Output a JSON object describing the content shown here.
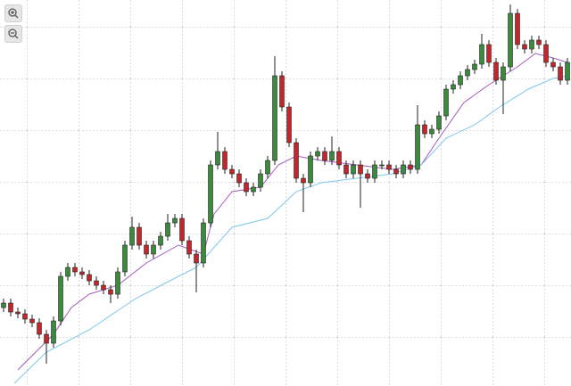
{
  "chart_data": {
    "type": "candlestick",
    "xlim": [
      -0.5,
      79.5
    ],
    "ylim": [
      0,
      433
    ],
    "up_color": "#3b8a3e",
    "down_color": "#c0282d",
    "wick_color": "#222222",
    "open": [
      88,
      93,
      83,
      81,
      75,
      71,
      58,
      48,
      73,
      123,
      133,
      128,
      125,
      118,
      113,
      108,
      103,
      128,
      158,
      178,
      158,
      148,
      158,
      168,
      183,
      188,
      163,
      148,
      138,
      183,
      248,
      263,
      243,
      238,
      228,
      218,
      223,
      238,
      253,
      348,
      313,
      273,
      233,
      228,
      258,
      263,
      253,
      263,
      248,
      238,
      248,
      238,
      233,
      248,
      248,
      243,
      238,
      248,
      243,
      293,
      283,
      288,
      303,
      333,
      338,
      348,
      355,
      361,
      383,
      363,
      343,
      358,
      418,
      383,
      378,
      388,
      383,
      363,
      358,
      343
    ],
    "high": [
      98,
      98,
      88,
      86,
      80,
      76,
      63,
      78,
      128,
      138,
      138,
      133,
      130,
      123,
      118,
      113,
      133,
      163,
      190,
      183,
      163,
      163,
      173,
      193,
      193,
      193,
      168,
      153,
      188,
      253,
      285,
      268,
      248,
      243,
      233,
      228,
      243,
      258,
      370,
      353,
      318,
      278,
      238,
      263,
      268,
      268,
      280,
      268,
      253,
      253,
      253,
      243,
      253,
      253,
      253,
      248,
      253,
      253,
      315,
      298,
      293,
      308,
      338,
      343,
      353,
      360,
      366,
      395,
      388,
      368,
      363,
      428,
      423,
      388,
      393,
      393,
      388,
      368,
      363,
      368
    ],
    "low": [
      83,
      78,
      76,
      70,
      66,
      53,
      25,
      43,
      68,
      118,
      123,
      120,
      113,
      108,
      103,
      93,
      98,
      123,
      153,
      153,
      143,
      143,
      153,
      163,
      178,
      158,
      143,
      105,
      133,
      178,
      243,
      238,
      233,
      223,
      213,
      213,
      218,
      233,
      248,
      308,
      268,
      228,
      195,
      223,
      253,
      248,
      248,
      243,
      233,
      233,
      200,
      228,
      228,
      243,
      238,
      233,
      233,
      238,
      238,
      278,
      278,
      283,
      298,
      328,
      333,
      343,
      350,
      356,
      358,
      338,
      305,
      353,
      378,
      373,
      373,
      378,
      358,
      353,
      338,
      338
    ],
    "close": [
      93,
      83,
      81,
      75,
      71,
      58,
      48,
      73,
      123,
      133,
      128,
      125,
      118,
      113,
      108,
      103,
      128,
      158,
      178,
      158,
      148,
      158,
      168,
      183,
      188,
      163,
      148,
      138,
      183,
      248,
      263,
      243,
      238,
      228,
      218,
      223,
      238,
      253,
      348,
      313,
      273,
      233,
      228,
      258,
      263,
      253,
      263,
      248,
      238,
      248,
      238,
      233,
      248,
      248,
      243,
      238,
      248,
      243,
      293,
      283,
      288,
      303,
      333,
      338,
      348,
      355,
      361,
      383,
      363,
      343,
      358,
      418,
      383,
      378,
      388,
      383,
      363,
      358,
      343,
      363
    ],
    "series": [
      {
        "color": "#a35bb8",
        "x": [
          2,
          7,
          9.5,
          12,
          16,
          20,
          24.5,
          28,
          29.5,
          32,
          36,
          38.5,
          41,
          44.5,
          49.5,
          54.5,
          58.5,
          61,
          64.5,
          68,
          72,
          74.5,
          77,
          79
        ],
        "values": [
          18,
          58,
          88,
          103,
          113,
          138,
          158,
          148,
          193,
          218,
          223,
          248,
          258,
          253,
          248,
          243,
          248,
          278,
          318,
          338,
          358,
          373,
          368,
          363
        ]
      },
      {
        "color": "#7cc6ee",
        "x": [
          1.5,
          6,
          12,
          18.5,
          24.5,
          27,
          32,
          37,
          41,
          44.5,
          49.5,
          54.5,
          58.5,
          62,
          66,
          69.5,
          73.5,
          77,
          79
        ],
        "values": [
          3,
          38,
          63,
          98,
          123,
          133,
          178,
          188,
          218,
          228,
          233,
          238,
          248,
          278,
          293,
          313,
          333,
          345,
          348
        ]
      }
    ]
  }
}
